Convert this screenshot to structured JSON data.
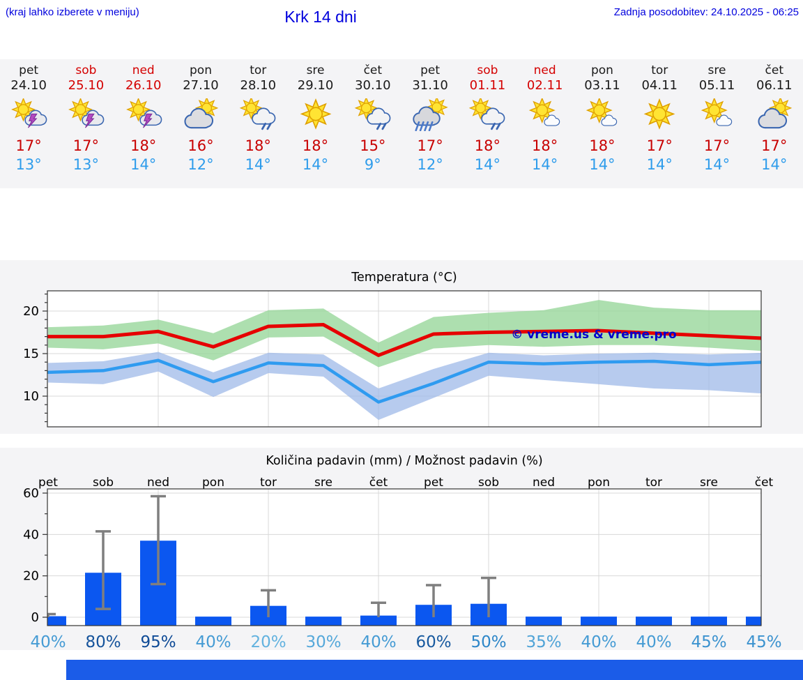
{
  "header": {
    "hint": "(kraj lahko izberete v meniju)",
    "title": "Krk 14 dni",
    "updated": "Zadnja posodobitev: 24.10.2025 - 06:25"
  },
  "days": [
    {
      "name": "pet",
      "date": "24.10",
      "weekend": false,
      "icon": "storm",
      "high": "17°",
      "low": "13°"
    },
    {
      "name": "sob",
      "date": "25.10",
      "weekend": true,
      "icon": "storm",
      "high": "17°",
      "low": "13°"
    },
    {
      "name": "ned",
      "date": "26.10",
      "weekend": true,
      "icon": "storm",
      "high": "18°",
      "low": "14°"
    },
    {
      "name": "pon",
      "date": "27.10",
      "weekend": false,
      "icon": "mostly-cloudy",
      "high": "16°",
      "low": "12°"
    },
    {
      "name": "tor",
      "date": "28.10",
      "weekend": false,
      "icon": "rain-light",
      "high": "18°",
      "low": "14°"
    },
    {
      "name": "sre",
      "date": "29.10",
      "weekend": false,
      "icon": "sunny",
      "high": "18°",
      "low": "14°"
    },
    {
      "name": "čet",
      "date": "30.10",
      "weekend": false,
      "icon": "rain-light",
      "high": "15°",
      "low": "9°"
    },
    {
      "name": "pet",
      "date": "31.10",
      "weekend": false,
      "icon": "rain",
      "high": "17°",
      "low": "12°"
    },
    {
      "name": "sob",
      "date": "01.11",
      "weekend": true,
      "icon": "rain-light",
      "high": "18°",
      "low": "14°"
    },
    {
      "name": "ned",
      "date": "02.11",
      "weekend": true,
      "icon": "sun-small-cloud",
      "high": "18°",
      "low": "14°"
    },
    {
      "name": "pon",
      "date": "03.11",
      "weekend": false,
      "icon": "sun-small-cloud",
      "high": "18°",
      "low": "14°"
    },
    {
      "name": "tor",
      "date": "04.11",
      "weekend": false,
      "icon": "sunny",
      "high": "17°",
      "low": "14°"
    },
    {
      "name": "sre",
      "date": "05.11",
      "weekend": false,
      "icon": "sun-small-cloud",
      "high": "17°",
      "low": "14°"
    },
    {
      "name": "čet",
      "date": "06.11",
      "weekend": false,
      "icon": "mostly-cloudy",
      "high": "17°",
      "low": "14°"
    }
  ],
  "colors": {
    "header_blue": "#0000dd",
    "weekend_red": "#d40000",
    "high_red": "#c80000",
    "low_blue": "#2e9ceb",
    "figure_bg": "#f4f4f6",
    "footer_bar_blue": "#1b5ce8"
  },
  "chart_data": [
    {
      "type": "line",
      "title": "Temperatura (°C)",
      "categories": [
        "24.10",
        "25.10",
        "26.10",
        "27.10",
        "28.10",
        "29.10",
        "30.10",
        "31.10",
        "01.11",
        "02.11",
        "03.11",
        "04.11",
        "05.11",
        "06.11"
      ],
      "yticks": [
        10,
        15,
        20
      ],
      "ylim": [
        6.4,
        22.4
      ],
      "grid": true,
      "watermark": "© vreme.us & vreme.pro",
      "watermark_color": "#0000cc",
      "series": [
        {
          "name": "max-temp",
          "color": "#e60000",
          "values": [
            17,
            17,
            17.6,
            15.8,
            18.2,
            18.4,
            14.8,
            17.3,
            17.5,
            17.6,
            17.7,
            17.4,
            17.1,
            16.8
          ]
        },
        {
          "name": "min-temp",
          "color": "#2f9bf0",
          "values": [
            12.8,
            13,
            14.2,
            11.7,
            13.9,
            13.6,
            9.3,
            11.5,
            14,
            13.8,
            14,
            14.1,
            13.7,
            14
          ]
        }
      ],
      "bands": [
        {
          "name": "max-temp-range",
          "color": "#98d79b",
          "opacity": 0.8,
          "upper": [
            18.1,
            18.3,
            19,
            17.4,
            20.1,
            20.3,
            16.3,
            19.3,
            19.8,
            20.1,
            21.3,
            20.4,
            20.1,
            20.1
          ],
          "lower": [
            15.7,
            15.5,
            16.2,
            14.2,
            16.9,
            17,
            13.4,
            15.6,
            16,
            15.8,
            16,
            16,
            15.7,
            15.3
          ]
        },
        {
          "name": "min-temp-range",
          "color": "#9fb9e8",
          "opacity": 0.75,
          "upper": [
            13.9,
            14.1,
            15.2,
            12.8,
            15.1,
            14.9,
            10.9,
            13.2,
            15.1,
            14.8,
            15,
            15.1,
            14.9,
            15.1
          ],
          "lower": [
            11.6,
            11.4,
            12.9,
            9.9,
            12.7,
            12.3,
            7.2,
            9.8,
            12.4,
            11.9,
            11.4,
            10.9,
            10.7,
            10.3
          ]
        }
      ]
    },
    {
      "type": "bar",
      "title": "Količina padavin (mm) / Možnost padavin (%)",
      "categories": [
        "pet",
        "sob",
        "ned",
        "pon",
        "tor",
        "sre",
        "čet",
        "pet",
        "sob",
        "ned",
        "pon",
        "tor",
        "sre",
        "čet"
      ],
      "values": [
        0.5,
        21.5,
        37,
        0.3,
        5.5,
        0.3,
        0.8,
        6,
        6.5,
        0.3,
        0.3,
        0.3,
        0.3,
        0.3
      ],
      "whisker_low": [
        0,
        4,
        16,
        0,
        0,
        0,
        0,
        0,
        0,
        0,
        0,
        0,
        0,
        0
      ],
      "whisker_high": [
        1.5,
        41.5,
        58.5,
        0,
        13,
        0,
        7,
        15.5,
        19,
        0,
        0,
        0,
        0,
        0
      ],
      "yticks": [
        0,
        20,
        40,
        60
      ],
      "ylim": [
        -4,
        62
      ],
      "grid": true,
      "bar_color": "#0b57f0",
      "whisker_color": "#7f7f7f",
      "pop": {
        "values": [
          "40%",
          "80%",
          "95%",
          "40%",
          "20%",
          "30%",
          "40%",
          "60%",
          "50%",
          "35%",
          "40%",
          "40%",
          "45%",
          "45%"
        ],
        "colors": [
          "#459bd4",
          "#15539b",
          "#0e4a96",
          "#459bd4",
          "#62b2df",
          "#55a8da",
          "#459bd4",
          "#17599f",
          "#2d86c8",
          "#4fa3d7",
          "#459bd4",
          "#459bd4",
          "#3b92cf",
          "#3b92cf"
        ]
      }
    }
  ]
}
